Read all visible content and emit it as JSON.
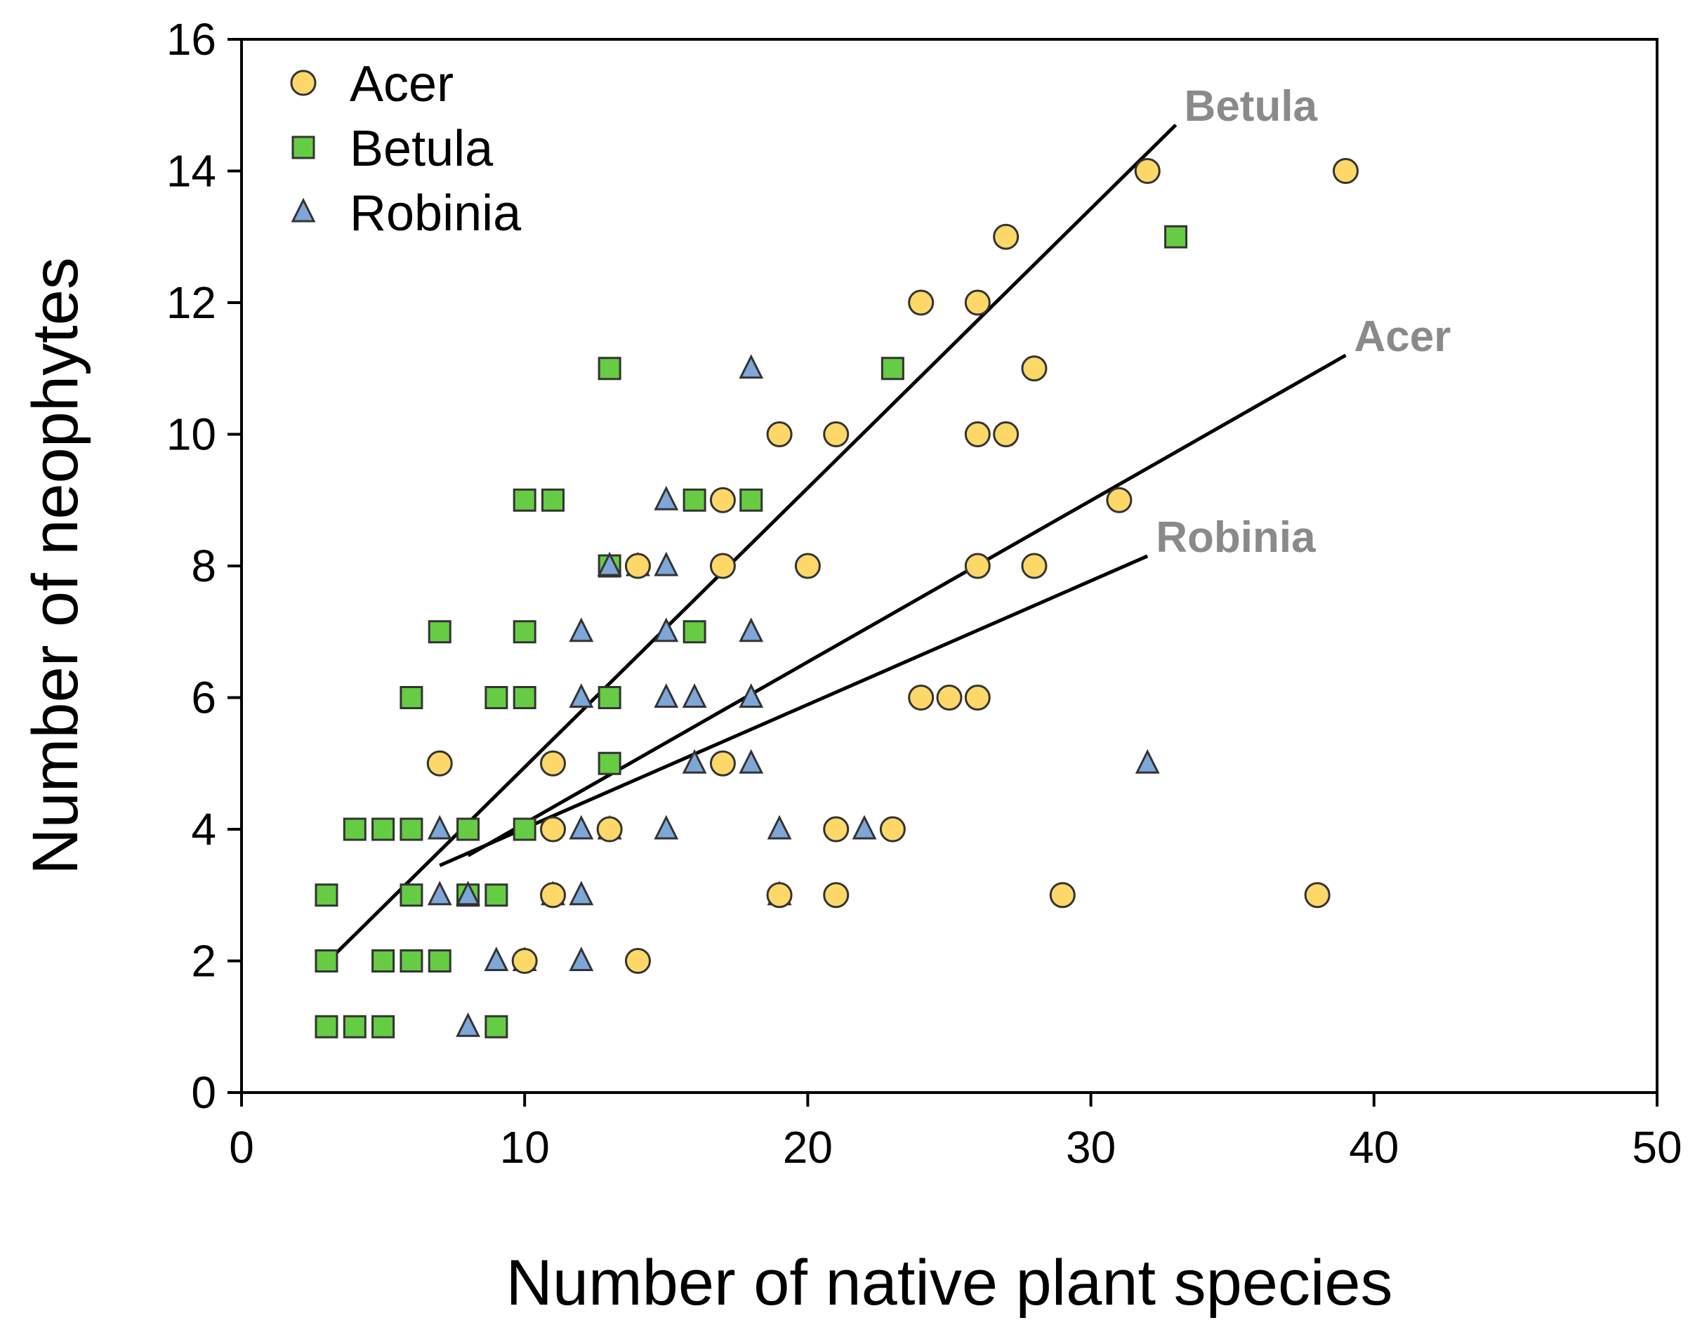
{
  "chart_data": {
    "type": "scatter",
    "title": "",
    "xlabel": "Number of native plant species",
    "ylabel": "Number of neophytes",
    "xlim": [
      0,
      50
    ],
    "ylim": [
      0,
      16
    ],
    "xticks": [
      0,
      10,
      20,
      30,
      40,
      50
    ],
    "yticks": [
      0,
      2,
      4,
      6,
      8,
      10,
      12,
      14,
      16
    ],
    "grid": false,
    "legend_position": "top-left",
    "colors": {
      "Acer": "#fdd868",
      "Betula": "#66cc44",
      "Robinia": "#7ea6d8"
    },
    "series": [
      {
        "name": "Acer",
        "marker": "circle",
        "points": [
          [
            7,
            5
          ],
          [
            10,
            2
          ],
          [
            11,
            5
          ],
          [
            11,
            4
          ],
          [
            11,
            3
          ],
          [
            13,
            4
          ],
          [
            14,
            8
          ],
          [
            14,
            2
          ],
          [
            17,
            9
          ],
          [
            17,
            8
          ],
          [
            17,
            5
          ],
          [
            19,
            10
          ],
          [
            19,
            3
          ],
          [
            20,
            8
          ],
          [
            21,
            10
          ],
          [
            21,
            4
          ],
          [
            21,
            3
          ],
          [
            23,
            4
          ],
          [
            24,
            12
          ],
          [
            24,
            6
          ],
          [
            25,
            6
          ],
          [
            26,
            12
          ],
          [
            26,
            10
          ],
          [
            26,
            8
          ],
          [
            26,
            6
          ],
          [
            27,
            13
          ],
          [
            27,
            10
          ],
          [
            28,
            11
          ],
          [
            28,
            8
          ],
          [
            29,
            3
          ],
          [
            31,
            9
          ],
          [
            32,
            14
          ],
          [
            38,
            3
          ],
          [
            39,
            14
          ]
        ]
      },
      {
        "name": "Betula",
        "marker": "square",
        "points": [
          [
            3,
            3
          ],
          [
            3,
            2
          ],
          [
            3,
            1
          ],
          [
            4,
            4
          ],
          [
            4,
            1
          ],
          [
            5,
            4
          ],
          [
            5,
            2
          ],
          [
            5,
            1
          ],
          [
            6,
            6
          ],
          [
            6,
            4
          ],
          [
            6,
            3
          ],
          [
            6,
            2
          ],
          [
            7,
            7
          ],
          [
            7,
            2
          ],
          [
            8,
            4
          ],
          [
            8,
            3
          ],
          [
            9,
            6
          ],
          [
            9,
            3
          ],
          [
            9,
            1
          ],
          [
            10,
            9
          ],
          [
            10,
            7
          ],
          [
            10,
            6
          ],
          [
            10,
            4
          ],
          [
            11,
            9
          ],
          [
            13,
            11
          ],
          [
            13,
            8
          ],
          [
            13,
            6
          ],
          [
            13,
            5
          ],
          [
            16,
            9
          ],
          [
            16,
            7
          ],
          [
            18,
            9
          ],
          [
            23,
            11
          ],
          [
            33,
            13
          ]
        ]
      },
      {
        "name": "Robinia",
        "marker": "triangle",
        "points": [
          [
            7,
            4
          ],
          [
            7,
            3
          ],
          [
            8,
            3
          ],
          [
            8,
            1
          ],
          [
            9,
            2
          ],
          [
            10,
            2
          ],
          [
            11,
            3
          ],
          [
            12,
            7
          ],
          [
            12,
            6
          ],
          [
            12,
            4
          ],
          [
            12,
            3
          ],
          [
            12,
            2
          ],
          [
            13,
            8
          ],
          [
            13,
            4
          ],
          [
            14,
            8
          ],
          [
            15,
            9
          ],
          [
            15,
            8
          ],
          [
            15,
            7
          ],
          [
            15,
            6
          ],
          [
            15,
            4
          ],
          [
            16,
            6
          ],
          [
            16,
            5
          ],
          [
            18,
            11
          ],
          [
            18,
            7
          ],
          [
            18,
            6
          ],
          [
            18,
            5
          ],
          [
            19,
            4
          ],
          [
            19,
            3
          ],
          [
            22,
            4
          ],
          [
            32,
            5
          ]
        ]
      }
    ],
    "trend_lines": [
      {
        "name": "Betula",
        "label": "Betula",
        "x": [
          3.3,
          33
        ],
        "y": [
          2.1,
          14.7
        ]
      },
      {
        "name": "Acer",
        "label": "Acer",
        "x": [
          8,
          39
        ],
        "y": [
          3.6,
          11.2
        ]
      },
      {
        "name": "Robinia",
        "label": "Robinia",
        "x": [
          7,
          32
        ],
        "y": [
          3.45,
          8.15
        ]
      }
    ]
  }
}
